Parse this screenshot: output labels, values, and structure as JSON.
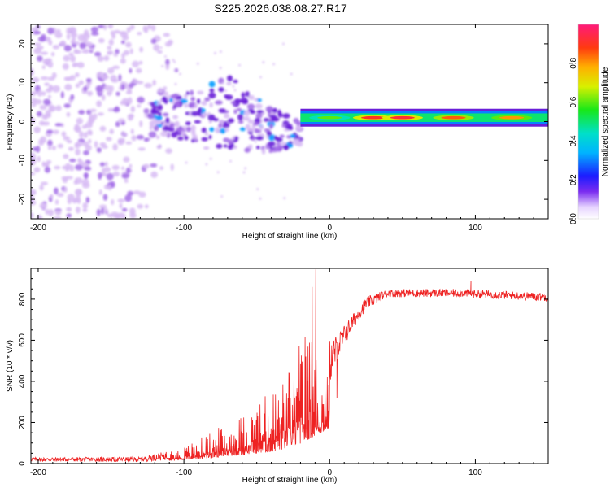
{
  "figure_title": "S225.2026.038.08.27.R17",
  "colors": {
    "snr_line": "#ee2222",
    "blob_light": "#d8bcf5",
    "blob_mid": "#a46ee8",
    "blob_dark": "#6a1fd8",
    "axis": "#000000"
  },
  "chart_data": [
    {
      "type": "heatmap",
      "title": "",
      "xlabel": "Height of straight line (km)",
      "ylabel": "Frequency (Hz)",
      "xlim": [
        -205,
        150
      ],
      "ylim": [
        -25,
        25
      ],
      "xticks": [
        -200,
        -100,
        0,
        100
      ],
      "xtick_labels": [
        "-200",
        "-100",
        "0",
        "100"
      ],
      "yticks": [
        -20,
        -10,
        0,
        10,
        20
      ],
      "ytick_labels": [
        "-20",
        "-10",
        "0",
        "10",
        "20"
      ],
      "colorbar": {
        "label": "Normalized spectral amplitude",
        "range": [
          0,
          1
        ],
        "ticks": [
          0.0,
          0.2,
          0.4,
          0.6,
          0.8
        ],
        "tick_labels": [
          "0.0",
          "0.2",
          "0.4",
          "0.6",
          "0.8"
        ]
      },
      "description_regions": [
        {
          "name": "diffuse noise",
          "x_range": [
            -205,
            -115
          ],
          "freq_range": [
            -25,
            25
          ],
          "amplitude": 0.1
        },
        {
          "name": "tilted scatter",
          "x_range": [
            -125,
            -20
          ],
          "freq_center_start": 2,
          "freq_center_end": -3,
          "amplitude": 0.3
        },
        {
          "name": "carrier line",
          "x_range": [
            -20,
            150
          ],
          "freq": 1,
          "amplitude": 0.9
        }
      ],
      "carrier_peaks": [
        {
          "x": 0,
          "amp": 0.6
        },
        {
          "x": 30,
          "amp": 0.9
        },
        {
          "x": 50,
          "amp": 0.92
        },
        {
          "x": 85,
          "amp": 0.85
        },
        {
          "x": 125,
          "amp": 0.8
        }
      ]
    },
    {
      "type": "line",
      "title": "",
      "xlabel": "Height of straight line (km)",
      "ylabel": "SNR (10 * v/v)",
      "xlim": [
        -205,
        150
      ],
      "ylim": [
        0,
        950
      ],
      "xticks": [
        -200,
        -100,
        0,
        100
      ],
      "xtick_labels": [
        "-200",
        "-100",
        "0",
        "100"
      ],
      "yticks": [
        0,
        200,
        400,
        600,
        800
      ],
      "ytick_labels": [
        "0",
        "200",
        "400",
        "600",
        "800"
      ],
      "series": [
        {
          "name": "SNR",
          "envelope": [
            {
              "x": -205,
              "mean": 20,
              "noise": 10
            },
            {
              "x": -130,
              "mean": 20,
              "noise": 12
            },
            {
              "x": -115,
              "mean": 35,
              "noise": 20
            },
            {
              "x": -100,
              "mean": 50,
              "noise": 30
            },
            {
              "x": -80,
              "mean": 80,
              "noise": 60
            },
            {
              "x": -60,
              "mean": 120,
              "noise": 90
            },
            {
              "x": -40,
              "mean": 160,
              "noise": 140
            },
            {
              "x": -25,
              "mean": 230,
              "noise": 200
            },
            {
              "x": -15,
              "mean": 330,
              "noise": 260
            },
            {
              "x": -5,
              "mean": 430,
              "noise": 150
            },
            {
              "x": 5,
              "mean": 560,
              "noise": 70
            },
            {
              "x": 15,
              "mean": 680,
              "noise": 40
            },
            {
              "x": 25,
              "mean": 780,
              "noise": 30
            },
            {
              "x": 40,
              "mean": 830,
              "noise": 20
            },
            {
              "x": 90,
              "mean": 830,
              "noise": 20
            },
            {
              "x": 150,
              "mean": 810,
              "noise": 20
            }
          ],
          "notable_points": [
            {
              "x": -9.5,
              "y": 945
            },
            {
              "x": -12,
              "y": 860
            },
            {
              "x": 5,
              "y": 320
            },
            {
              "x": 97,
              "y": 890
            }
          ]
        }
      ]
    }
  ]
}
